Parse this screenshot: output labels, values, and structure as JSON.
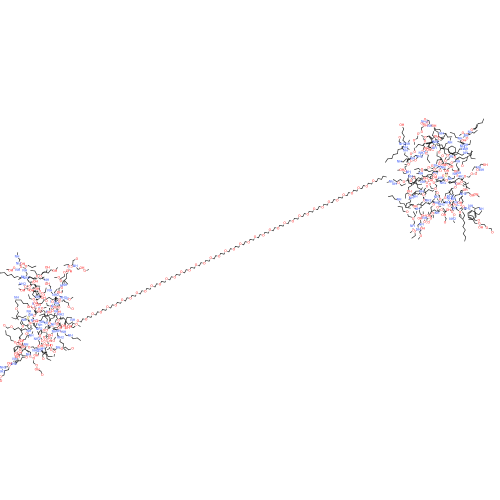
{
  "figure": {
    "kind": "skeletal-structure",
    "background": "#ffffff",
    "colors": {
      "bond": "#1a1a1a",
      "oxygen": "#ff0d0d",
      "nitrogen": "#3050f8",
      "sulfur": "#c8b400"
    },
    "atom_labels": {
      "oxygen": "O",
      "nitrogen": "N",
      "nitrogen_h": "NH",
      "hydroxyl": "OH",
      "amine": "NH2",
      "sulfur": "S"
    }
  }
}
